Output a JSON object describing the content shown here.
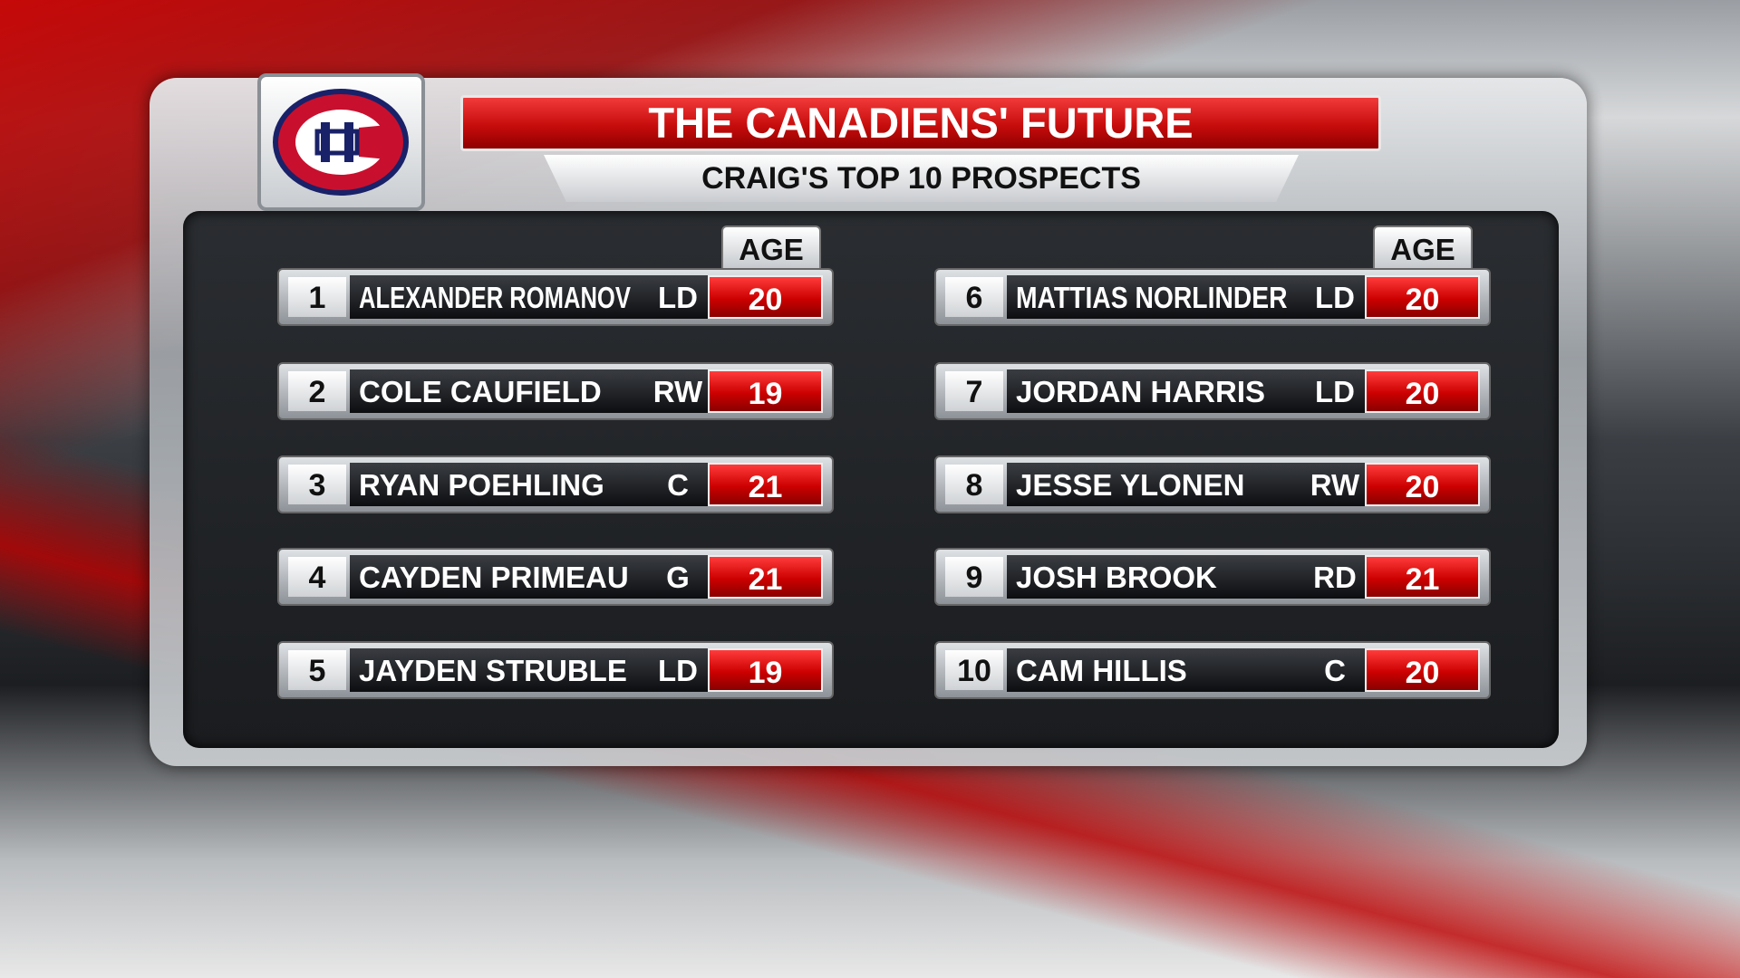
{
  "header": {
    "title": "THE CANADIENS' FUTURE",
    "subtitle": "CRAIG'S TOP 10 PROSPECTS"
  },
  "table": {
    "columns": [
      {
        "age_header": "AGE",
        "rows": [
          {
            "rank": 1,
            "name": "ALEXANDER ROMANOV",
            "position": "LD",
            "age": 20
          },
          {
            "rank": 2,
            "name": "COLE CAUFIELD",
            "position": "RW",
            "age": 19
          },
          {
            "rank": 3,
            "name": "RYAN POEHLING",
            "position": "C",
            "age": 21
          },
          {
            "rank": 4,
            "name": "CAYDEN PRIMEAU",
            "position": "G",
            "age": 21
          },
          {
            "rank": 5,
            "name": "JAYDEN STRUBLE",
            "position": "LD",
            "age": 19
          }
        ]
      },
      {
        "age_header": "AGE",
        "rows": [
          {
            "rank": 6,
            "name": "MATTIAS NORLINDER",
            "position": "LD",
            "age": 20
          },
          {
            "rank": 7,
            "name": "JORDAN HARRIS",
            "position": "LD",
            "age": 20
          },
          {
            "rank": 8,
            "name": "JESSE YLONEN",
            "position": "RW",
            "age": 20
          },
          {
            "rank": 9,
            "name": "JOSH BROOK",
            "position": "RD",
            "age": 21
          },
          {
            "rank": 10,
            "name": "CAM HILLIS",
            "position": "C",
            "age": 20
          }
        ]
      }
    ]
  }
}
